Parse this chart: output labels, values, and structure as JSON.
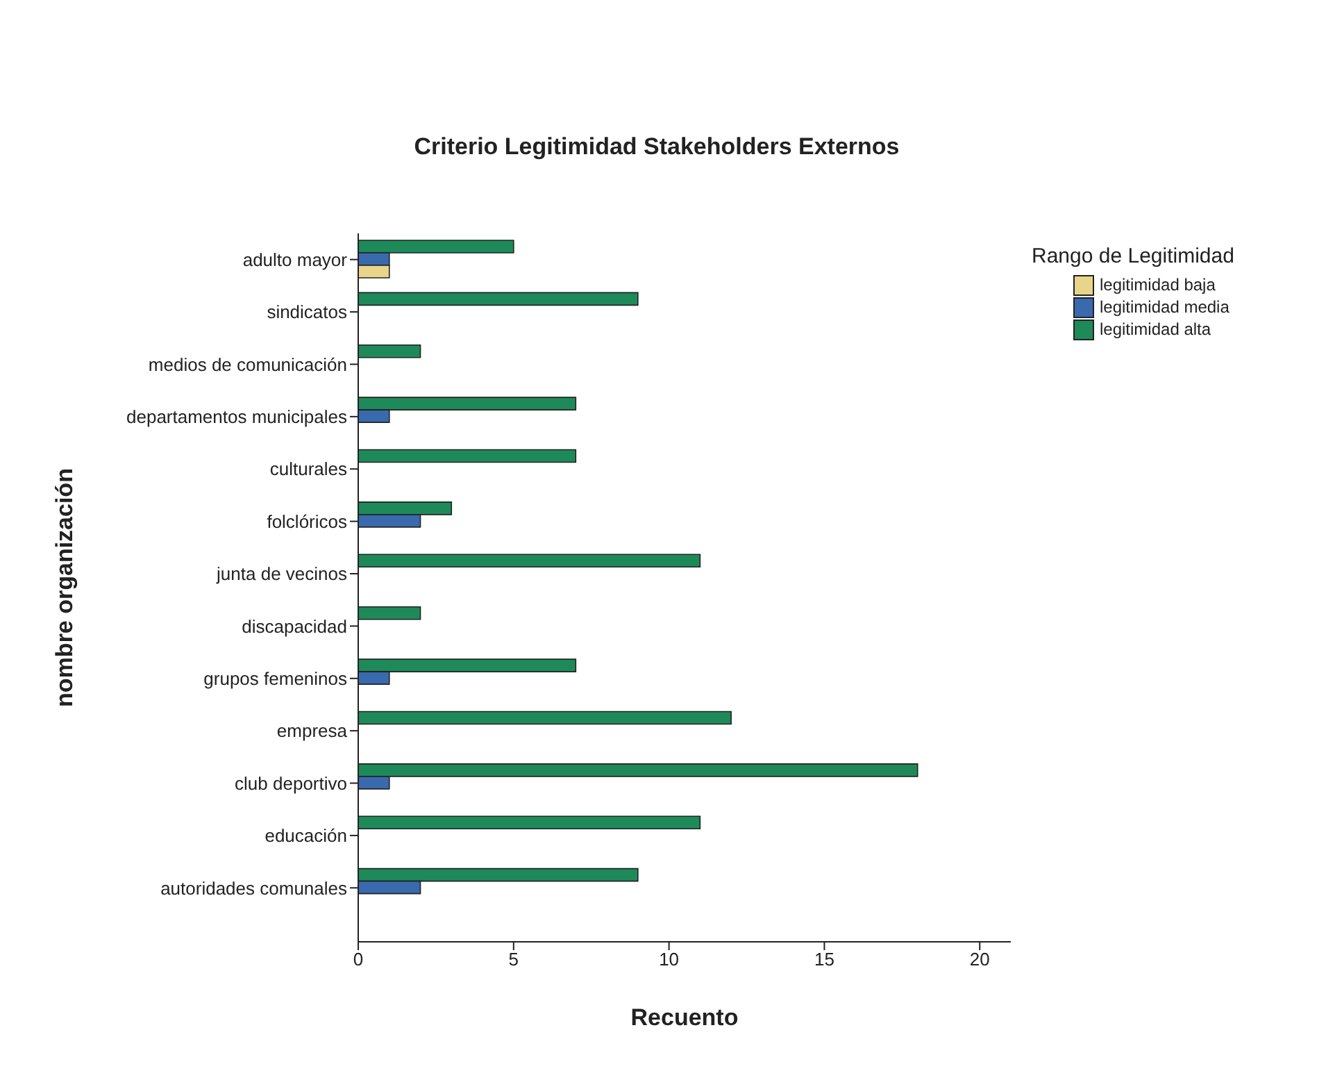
{
  "chart_data": {
    "type": "bar",
    "orientation": "horizontal",
    "title": "Criterio Legitimidad Stakeholders Externos",
    "xlabel": "Recuento",
    "ylabel": "nombre organización",
    "legend_title": "Rango de Legitimidad",
    "legend": "top right",
    "grid": false,
    "categories": [
      "adulto mayor",
      "sindicatos",
      "medios de comunicación",
      "departamentos municipales",
      "culturales",
      "folclóricos",
      "junta de vecinos",
      "discapacidad",
      "grupos femeninos",
      "empresa",
      "club deportivo",
      "educación",
      "autoridades comunales"
    ],
    "series": [
      {
        "name": "legitimidad baja",
        "color": "#e8d58a",
        "values": [
          1,
          null,
          null,
          null,
          null,
          null,
          null,
          null,
          null,
          null,
          null,
          null,
          null
        ]
      },
      {
        "name": "legitimidad media",
        "color": "#3a6aae",
        "values": [
          1,
          null,
          null,
          1,
          null,
          2,
          null,
          null,
          1,
          null,
          1,
          null,
          2
        ]
      },
      {
        "name": "legitimidad alta",
        "color": "#1e8a5a",
        "values": [
          5,
          9,
          2,
          7,
          7,
          3,
          11,
          2,
          7,
          12,
          18,
          11,
          9
        ]
      }
    ],
    "xlim": [
      0,
      21
    ],
    "xticks": [
      0,
      5,
      10,
      15,
      20
    ]
  }
}
